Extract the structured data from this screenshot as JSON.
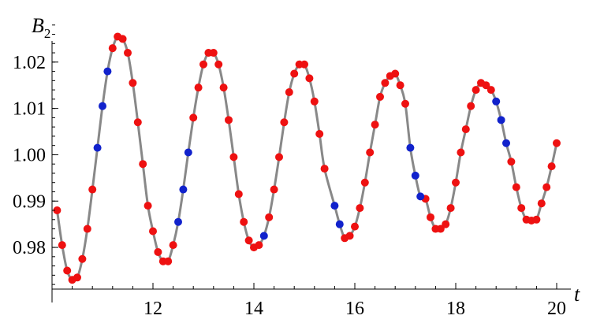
{
  "chart_data": {
    "type": "scatter",
    "xlabel": "t",
    "ylabel": "B",
    "ylabel_subscript": "2",
    "xlim": [
      10,
      20
    ],
    "ylim": [
      0.971,
      1.03
    ],
    "xticks": [
      12,
      14,
      16,
      18,
      20
    ],
    "xtick_labels": [
      "12",
      "14",
      "16",
      "18",
      "20"
    ],
    "yticks": [
      0.98,
      0.99,
      1.0,
      1.01,
      1.02
    ],
    "ytick_labels": [
      "0.98",
      "0.99",
      "1.00",
      "1.01",
      "1.02"
    ],
    "grid": false,
    "curve_color": "#888888",
    "series": [
      {
        "color": "#ee1111",
        "points": [
          [
            10.1,
            0.988
          ],
          [
            10.2,
            0.9805
          ],
          [
            10.3,
            0.975
          ],
          [
            10.4,
            0.973
          ],
          [
            10.5,
            0.9735
          ],
          [
            10.6,
            0.9775
          ],
          [
            10.7,
            0.984
          ],
          [
            10.8,
            0.9925
          ],
          [
            11.2,
            1.023
          ],
          [
            11.3,
            1.0255
          ],
          [
            11.4,
            1.025
          ],
          [
            11.5,
            1.022
          ],
          [
            11.6,
            1.0155
          ],
          [
            11.7,
            1.007
          ],
          [
            11.8,
            0.998
          ],
          [
            11.9,
            0.989
          ],
          [
            12.0,
            0.9835
          ],
          [
            12.1,
            0.979
          ],
          [
            12.2,
            0.977
          ],
          [
            12.3,
            0.977
          ],
          [
            12.4,
            0.9805
          ],
          [
            12.8,
            1.008
          ],
          [
            12.9,
            1.0145
          ],
          [
            13.0,
            1.0195
          ],
          [
            13.1,
            1.022
          ],
          [
            13.2,
            1.022
          ],
          [
            13.3,
            1.0195
          ],
          [
            13.4,
            1.0145
          ],
          [
            13.5,
            1.0075
          ],
          [
            13.6,
            0.9995
          ],
          [
            13.7,
            0.9915
          ],
          [
            13.8,
            0.9855
          ],
          [
            13.9,
            0.9815
          ],
          [
            14.0,
            0.98
          ],
          [
            14.1,
            0.9805
          ],
          [
            14.3,
            0.9865
          ],
          [
            14.4,
            0.9925
          ],
          [
            14.5,
            0.9995
          ],
          [
            14.6,
            1.007
          ],
          [
            14.7,
            1.0135
          ],
          [
            14.8,
            1.0175
          ],
          [
            14.9,
            1.0195
          ],
          [
            15.0,
            1.0195
          ],
          [
            15.1,
            1.0165
          ],
          [
            15.2,
            1.0115
          ],
          [
            15.3,
            1.0045
          ],
          [
            15.4,
            0.997
          ],
          [
            15.8,
            0.982
          ],
          [
            15.9,
            0.9825
          ],
          [
            16.0,
            0.9845
          ],
          [
            16.1,
            0.9885
          ],
          [
            16.2,
            0.994
          ],
          [
            16.3,
            1.0005
          ],
          [
            16.4,
            1.0065
          ],
          [
            16.5,
            1.0125
          ],
          [
            16.6,
            1.0155
          ],
          [
            16.7,
            1.017
          ],
          [
            16.8,
            1.0175
          ],
          [
            16.9,
            1.015
          ],
          [
            17.0,
            1.011
          ],
          [
            17.4,
            0.9905
          ],
          [
            17.5,
            0.9865
          ],
          [
            17.6,
            0.984
          ],
          [
            17.7,
            0.984
          ],
          [
            17.8,
            0.985
          ],
          [
            17.9,
            0.9885
          ],
          [
            18.0,
            0.994
          ],
          [
            18.1,
            1.0005
          ],
          [
            18.2,
            1.0055
          ],
          [
            18.3,
            1.0105
          ],
          [
            18.4,
            1.014
          ],
          [
            18.5,
            1.0155
          ],
          [
            18.6,
            1.015
          ],
          [
            18.7,
            1.014
          ],
          [
            19.1,
            0.9985
          ],
          [
            19.2,
            0.993
          ],
          [
            19.3,
            0.9885
          ],
          [
            19.4,
            0.986
          ],
          [
            19.5,
            0.9858
          ],
          [
            19.6,
            0.986
          ],
          [
            19.7,
            0.9895
          ],
          [
            19.8,
            0.993
          ],
          [
            19.9,
            0.9975
          ],
          [
            20.0,
            1.0025
          ]
        ]
      },
      {
        "color": "#1122cc",
        "points": [
          [
            10.9,
            1.0015
          ],
          [
            11.0,
            1.0105
          ],
          [
            11.1,
            1.018
          ],
          [
            12.5,
            0.9855
          ],
          [
            12.6,
            0.9925
          ],
          [
            12.7,
            1.0005
          ],
          [
            14.2,
            0.9825
          ],
          [
            15.6,
            0.989
          ],
          [
            15.7,
            0.985
          ],
          [
            17.1,
            1.0015
          ],
          [
            17.2,
            0.9955
          ],
          [
            17.3,
            0.991
          ],
          [
            18.8,
            1.0115
          ],
          [
            18.9,
            1.0075
          ],
          [
            19.0,
            1.0025
          ]
        ]
      }
    ]
  }
}
